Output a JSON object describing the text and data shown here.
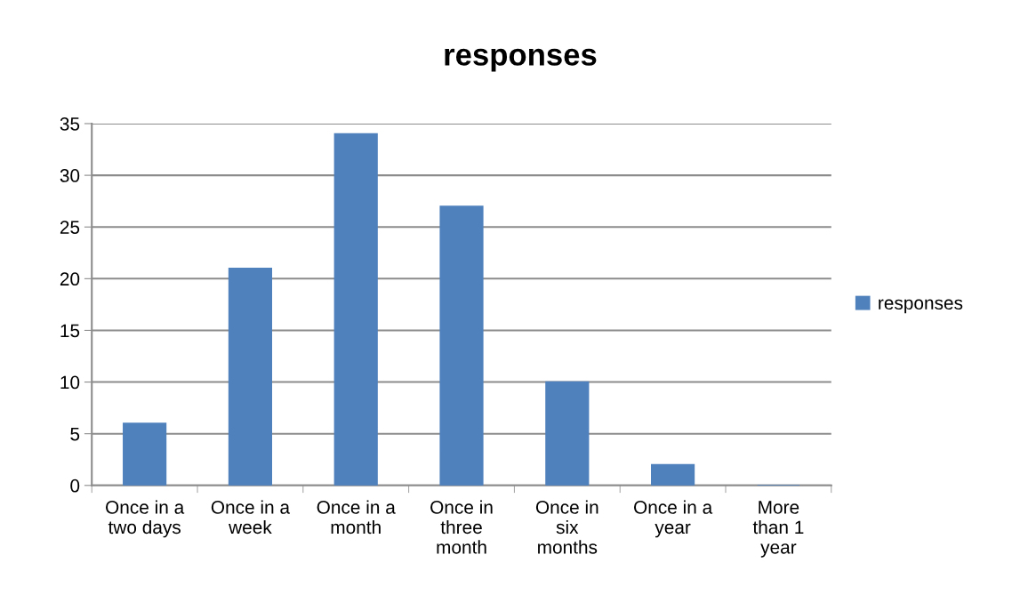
{
  "chart_data": {
    "type": "bar",
    "title": "responses",
    "categories": [
      "Once in a\ntwo days",
      "Once in a\nweek",
      "Once in a\nmonth",
      "Once in\nthree\nmonth",
      "Once in\nsix\nmonths",
      "Once in a\nyear",
      "More\nthan 1\nyear"
    ],
    "series": [
      {
        "name": "responses",
        "color": "#4f81bd",
        "values": [
          6,
          21,
          34,
          27,
          10,
          2,
          0
        ]
      }
    ],
    "ylim": [
      0,
      35
    ],
    "yticks": [
      0,
      5,
      10,
      15,
      20,
      25,
      30,
      35
    ],
    "grid": "y",
    "legend": "right"
  }
}
